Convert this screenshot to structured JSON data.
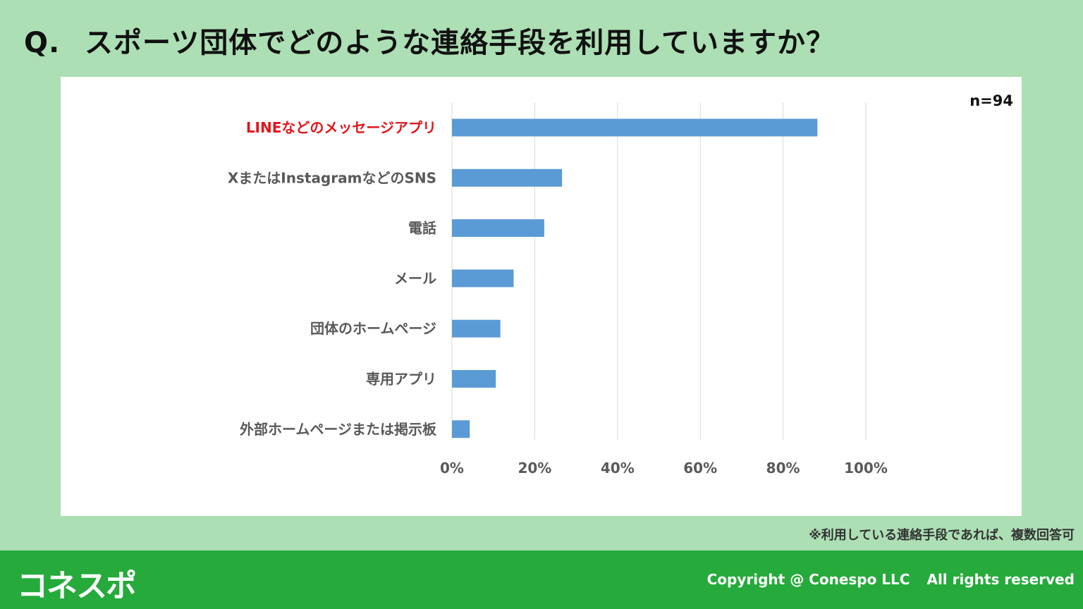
{
  "header": {
    "prefix": "Q.",
    "question": "スポーツ団体でどのような連絡手段を利用していますか？"
  },
  "chart_data": {
    "type": "bar",
    "orientation": "horizontal",
    "sample_size_label": "n=94",
    "categories": [
      "LINEなどのメッセージアプリ",
      "XまたはInstagramなどのSNS",
      "電話",
      "メール",
      "団体のホームページ",
      "専用アプリ",
      "外部ホームページまたは掲示板"
    ],
    "values": [
      88.3,
      26.6,
      22.3,
      14.9,
      11.7,
      10.6,
      4.3
    ],
    "unit": "%",
    "xlim": [
      0,
      100
    ],
    "ticks": [
      0,
      20,
      40,
      60,
      80,
      100
    ],
    "tick_labels": [
      "0%",
      "20%",
      "40%",
      "60%",
      "80%",
      "100%"
    ],
    "grid": true,
    "highlight_index": 0,
    "colors": {
      "bar": "#5b9bd5",
      "highlight_label": "#e0161b",
      "label": "#595959",
      "grid": "#d9d9d9"
    }
  },
  "note": "※利用している連絡手段であれば、複数回答可",
  "footer": {
    "logo": "コネスポ",
    "copyright": "Copyright @ Conespo LLC",
    "rights": "All rights reserved"
  }
}
